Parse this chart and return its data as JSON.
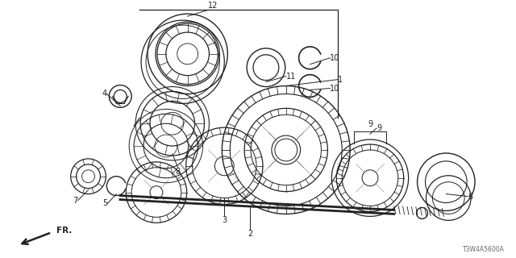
{
  "bg_color": "#ffffff",
  "line_color": "#222222",
  "fig_width": 6.4,
  "fig_height": 3.2,
  "dpi": 100,
  "watermark": "T3W4A5600A",
  "label_fs": 7.0
}
